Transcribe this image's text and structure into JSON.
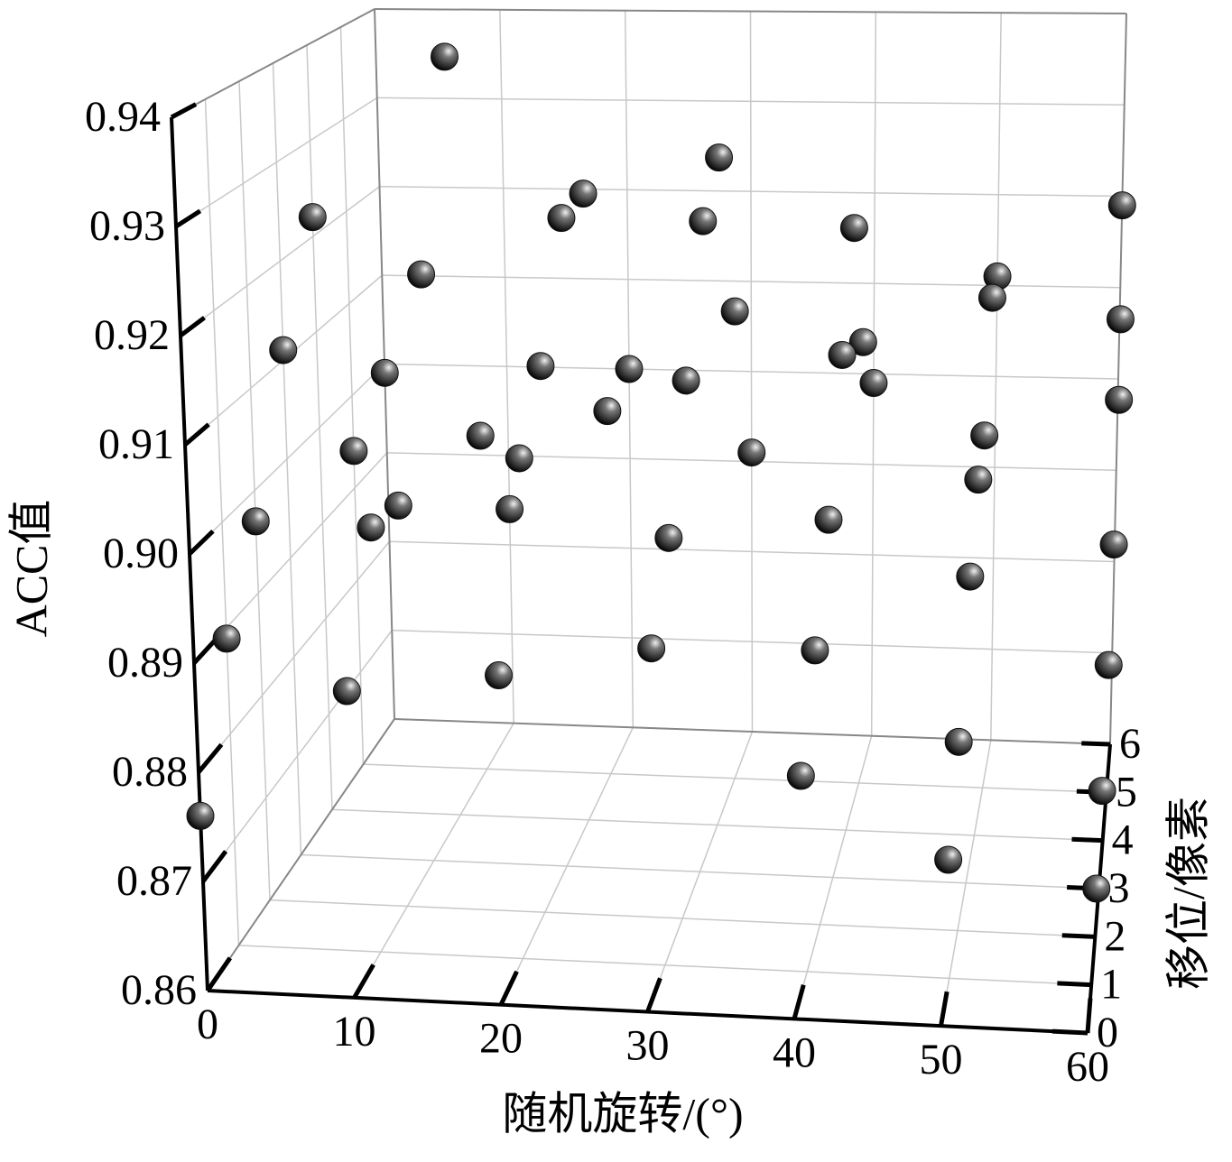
{
  "chart_data": {
    "type": "scatter3d",
    "xlabel": "随机旋转/(°)",
    "ylabel": "移位/像素",
    "zlabel": "ACC值",
    "x": [
      0,
      0,
      0,
      0,
      0,
      0,
      0,
      10,
      10,
      10,
      10,
      10,
      10,
      10,
      20,
      20,
      20,
      20,
      20,
      20,
      20,
      30,
      30,
      30,
      30,
      30,
      30,
      30,
      40,
      40,
      40,
      40,
      40,
      40,
      40,
      50,
      50,
      50,
      50,
      50,
      50,
      50,
      60,
      60,
      60,
      60,
      60,
      60,
      60
    ],
    "y": [
      0,
      1,
      2,
      3,
      4,
      5,
      6,
      0,
      1,
      2,
      3,
      4,
      5,
      6,
      0,
      1,
      2,
      3,
      4,
      5,
      6,
      0,
      1,
      2,
      3,
      4,
      5,
      6,
      0,
      1,
      2,
      3,
      4,
      5,
      6,
      0,
      1,
      2,
      3,
      4,
      5,
      6,
      0,
      1,
      2,
      3,
      4,
      5,
      6
    ],
    "z": [
      0.876,
      0.889,
      0.897,
      0.911,
      0.922,
      0.894,
      0.899,
      0.888,
      0.9,
      0.899,
      0.919,
      0.939,
      0.896,
      0.884,
      0.89,
      0.907,
      0.913,
      0.925,
      0.925,
      0.899,
      0.9,
      0.893,
      0.9,
      0.912,
      0.925,
      0.929,
      0.91,
      0.891,
      0.882,
      0.89,
      0.899,
      0.912,
      0.922,
      0.907,
      0.899,
      0.875,
      0.882,
      0.894,
      0.9,
      0.901,
      0.912,
      0.911,
      0.873,
      0.878,
      0.886,
      0.894,
      0.905,
      0.91,
      0.919
    ],
    "xlim": [
      0,
      60
    ],
    "ylim": [
      0,
      6
    ],
    "zlim": [
      0.86,
      0.94
    ],
    "xticks": [
      0,
      10,
      20,
      30,
      40,
      50,
      60
    ],
    "yticks": [
      0,
      1,
      2,
      3,
      4,
      5,
      6
    ],
    "zticks": [
      0.86,
      0.87,
      0.88,
      0.89,
      {
        "value": 0.9,
        "label": "0.90"
      },
      0.91,
      0.92,
      0.93,
      0.94
    ],
    "color": "#111111",
    "grid": true
  }
}
